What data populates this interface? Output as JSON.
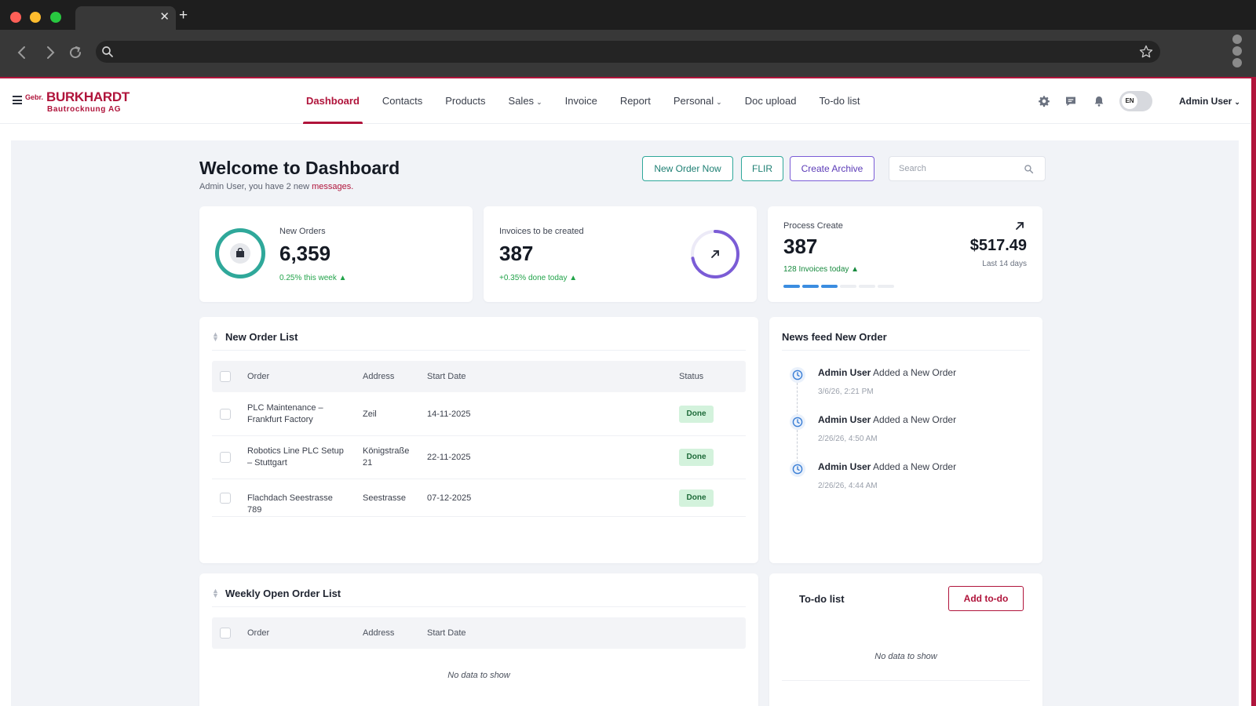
{
  "browser": {
    "tab_close": "✕",
    "tab_new": "+"
  },
  "header": {
    "logo": {
      "prefix": "Gebr.",
      "name": "BURKHARDT",
      "sub": "Bautrocknung AG"
    },
    "nav": [
      {
        "label": "Dashboard",
        "active": true,
        "dropdown": false
      },
      {
        "label": "Contacts",
        "active": false,
        "dropdown": false
      },
      {
        "label": "Products",
        "active": false,
        "dropdown": false
      },
      {
        "label": "Sales",
        "active": false,
        "dropdown": true
      },
      {
        "label": "Invoice",
        "active": false,
        "dropdown": false
      },
      {
        "label": "Report",
        "active": false,
        "dropdown": false
      },
      {
        "label": "Personal",
        "active": false,
        "dropdown": true
      },
      {
        "label": "Doc upload",
        "active": false,
        "dropdown": false
      },
      {
        "label": "To-do list",
        "active": false,
        "dropdown": false
      }
    ],
    "icons": [
      "gear-icon",
      "chat-icon",
      "bell-icon"
    ],
    "language": "EN",
    "user": "Admin User",
    "accent_color": "#b0143b"
  },
  "page": {
    "title": "Welcome to Dashboard",
    "subtitle": "Admin User, you have 2 new",
    "subtitle_link": "messages.",
    "buttons": {
      "new_order": "New Order Now",
      "flir": "FLIR",
      "create_archive": "Create Archive"
    },
    "search_placeholder": "Search"
  },
  "stats": {
    "new_orders": {
      "label": "New Orders",
      "value": "6,359",
      "trend": "0.25% this week"
    },
    "invoices": {
      "label": "Invoices to be created",
      "value": "387",
      "trend": "+0.35% done today",
      "ring_progress": 0.72
    },
    "process": {
      "label": "Process Create",
      "value": "387",
      "trend": "128 Invoices today",
      "amount": "$517.49",
      "period": "Last 14 days",
      "segments_filled": 3,
      "segments_total": 6
    }
  },
  "new_order_list": {
    "title": "New Order List",
    "columns": [
      "Order",
      "Address",
      "Start Date",
      "Status"
    ],
    "rows": [
      {
        "order": "PLC Maintenance – Frankfurt Factory",
        "address": "Zeil",
        "start_date": "14-11-2025",
        "status": "Done"
      },
      {
        "order": "Robotics Line PLC Setup – Stuttgart",
        "address": "Königstraße 21",
        "start_date": "22-11-2025",
        "status": "Done"
      },
      {
        "order": "Flachdach Seestrasse 789",
        "address": "Seestrasse",
        "start_date": "07-12-2025",
        "status": "Done"
      }
    ]
  },
  "news_feed": {
    "title": "News feed New Order",
    "items": [
      {
        "user": "Admin User",
        "action": "Added a New Order",
        "time": "3/6/26, 2:21 PM"
      },
      {
        "user": "Admin User",
        "action": "Added a New Order",
        "time": "2/26/26, 4:50 AM"
      },
      {
        "user": "Admin User",
        "action": "Added a New Order",
        "time": "2/26/26, 4:44 AM"
      }
    ]
  },
  "weekly_list": {
    "title": "Weekly Open Order List",
    "columns": [
      "Order",
      "Address",
      "Start Date"
    ],
    "empty": "No data to show"
  },
  "todo": {
    "title": "To-do list",
    "add_label": "Add to-do",
    "empty": "No data to show"
  }
}
